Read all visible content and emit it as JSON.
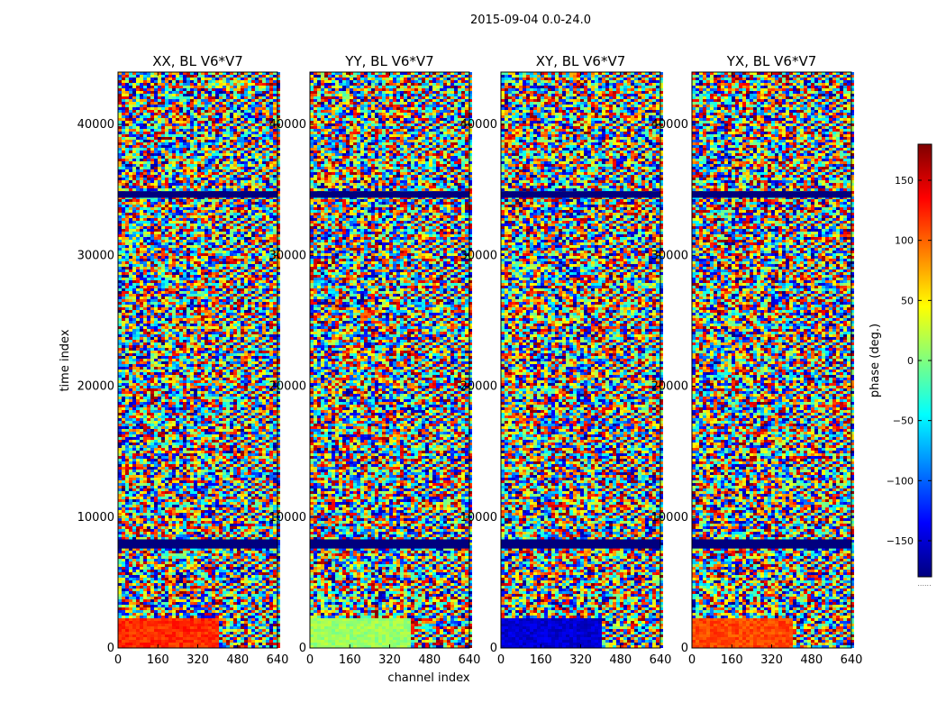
{
  "chart_data": {
    "type": "heatmap",
    "suptitle": "2015-09-04 0.0-24.0",
    "xlabel": "channel index",
    "ylabel": "time index",
    "xlim": [
      0,
      640
    ],
    "ylim": [
      0,
      44000
    ],
    "x_ticks": [
      0,
      160,
      320,
      480,
      640
    ],
    "y_ticks": [
      0,
      10000,
      20000,
      30000,
      40000
    ],
    "panels": [
      {
        "title": "XX, BL V6*V7",
        "low_block_phase": 120
      },
      {
        "title": "YY, BL V6*V7",
        "low_block_phase": 10
      },
      {
        "title": "XY, BL V6*V7",
        "low_block_phase": -150
      },
      {
        "title": "YX, BL V6*V7",
        "low_block_phase": 110
      }
    ],
    "flagged_time_bands": [
      [
        7600,
        8300
      ],
      [
        34400,
        34900
      ]
    ],
    "colorbar": {
      "label": "phase (deg.)",
      "range": [
        -180,
        180
      ],
      "ticks": [
        -150,
        -100,
        -50,
        0,
        50,
        100,
        150
      ],
      "ticklabels": [
        "−150",
        "−100",
        "−50",
        "0",
        "50",
        "100",
        "150"
      ],
      "footer": "......",
      "colors": [
        "#00007f",
        "#0000ff",
        "#007fff",
        "#00ffff",
        "#7fff7f",
        "#ffff00",
        "#ff7f00",
        "#ff0000",
        "#7f0000"
      ]
    }
  }
}
